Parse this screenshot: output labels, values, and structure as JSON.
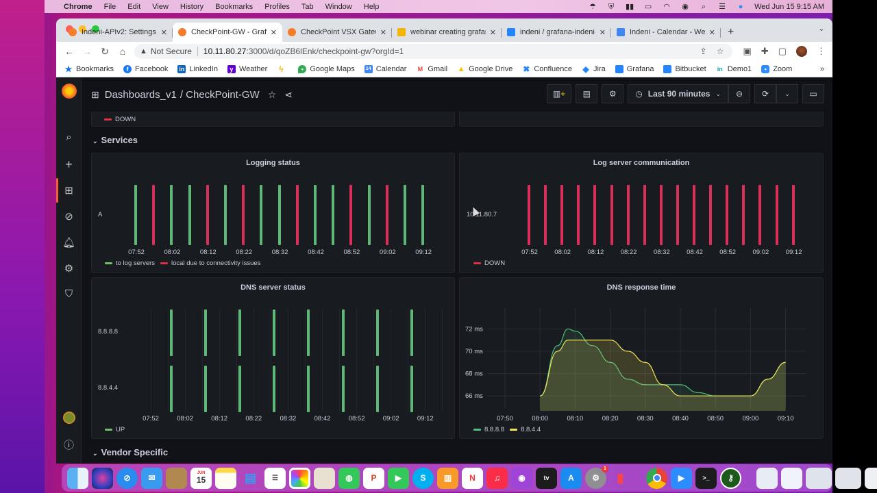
{
  "menubar": {
    "app": "Chrome",
    "items": [
      "File",
      "Edit",
      "View",
      "History",
      "Bookmarks",
      "Profiles",
      "Tab",
      "Window",
      "Help"
    ],
    "datetime": "Wed Jun 15  9:15 AM",
    "status_icons": [
      "rain-cloud-icon",
      "shield-icon",
      "waveform-icon",
      "battery-icon",
      "wifi-icon",
      "user-circle-icon",
      "search-icon",
      "control-center-icon",
      "siri-icon"
    ]
  },
  "browser": {
    "tabs": [
      {
        "title": "Indeni-APIv2: Settings -",
        "icon": "grafana-icon",
        "active": false
      },
      {
        "title": "CheckPoint-GW - Grafa",
        "icon": "grafana-icon",
        "active": true
      },
      {
        "title": "CheckPoint VSX Gatew",
        "icon": "grafana-icon",
        "active": false
      },
      {
        "title": "webinar creating grafan",
        "icon": "slides-icon",
        "active": false
      },
      {
        "title": "indeni / grafana-indeni-",
        "icon": "bitbucket-icon",
        "active": false
      },
      {
        "title": "Indeni - Calendar - Wee",
        "icon": "calendar-icon",
        "active": false
      }
    ],
    "security_label": "Not Secure",
    "url_host": "10.11.80.27",
    "url_path": ":3000/d/qoZB6lEnk/checkpoint-gw?orgId=1",
    "bookmarks": [
      {
        "label": "Bookmarks",
        "icon": "star-icon",
        "color": "#1a73e8"
      },
      {
        "label": "Facebook",
        "icon": "facebook-icon",
        "color": "#1877f2"
      },
      {
        "label": "LinkedIn",
        "icon": "linkedin-icon",
        "color": "#0a66c2"
      },
      {
        "label": "Weather",
        "icon": "yahoo-icon",
        "color": "#6001d2"
      },
      {
        "label": "",
        "icon": "bolt-icon",
        "color": "#f4b400"
      },
      {
        "label": "Google Maps",
        "icon": "maps-pin-icon",
        "color": "#34a853"
      },
      {
        "label": "Calendar",
        "icon": "calendar-icon",
        "color": "#4285f4"
      },
      {
        "label": "Gmail",
        "icon": "gmail-icon",
        "color": "#ea4335"
      },
      {
        "label": "Google Drive",
        "icon": "drive-icon",
        "color": "#fbbc04"
      },
      {
        "label": "Confluence",
        "icon": "confluence-icon",
        "color": "#2684ff"
      },
      {
        "label": "Jira",
        "icon": "jira-icon",
        "color": "#2684ff"
      },
      {
        "label": "Grafana",
        "icon": "bitbucket-icon",
        "color": "#2684ff"
      },
      {
        "label": "Bitbucket",
        "icon": "bitbucket-icon",
        "color": "#2684ff"
      },
      {
        "label": "Demo1",
        "icon": "invision-icon",
        "color": "#14a0a0"
      },
      {
        "label": "Zoom",
        "icon": "zoom-icon",
        "color": "#2d8cff"
      }
    ],
    "bookmarks_more": "»"
  },
  "grafana": {
    "breadcrumb_folder": "Dashboards_v1",
    "breadcrumb_dashboard": "/ CheckPoint-GW",
    "time_range": "Last 90 minutes",
    "top_partial_legend": "DOWN",
    "rows": {
      "services": "Services",
      "vendor": "Vendor Specific"
    },
    "colors": {
      "green": "#56a64b",
      "red": "#e02f44",
      "dns_green": "#4fbf7f",
      "dns_yellow": "#f2e35a",
      "accent": "#f55f3e"
    }
  },
  "chart_data": [
    {
      "type": "state-timeline",
      "title": "Logging status",
      "y_categories": [
        "A"
      ],
      "x_ticks": [
        "07:52",
        "08:02",
        "08:12",
        "08:22",
        "08:32",
        "08:42",
        "08:52",
        "09:02",
        "09:12"
      ],
      "states": [
        "green",
        "red",
        "green",
        "green",
        "red",
        "green",
        "red",
        "green",
        "green",
        "red",
        "green",
        "green",
        "red",
        "green",
        "red",
        "green",
        "green"
      ],
      "legend": [
        {
          "label": "to log servers",
          "color": "#73bf69"
        },
        {
          "label": "local due to connectivity issues",
          "color": "#e02f44"
        }
      ]
    },
    {
      "type": "state-timeline",
      "title": "Log server communication",
      "y_categories": [
        "10.11.80.7"
      ],
      "x_ticks": [
        "07:52",
        "08:02",
        "08:12",
        "08:22",
        "08:32",
        "08:42",
        "08:52",
        "09:02",
        "09:12"
      ],
      "states": [
        "red",
        "red",
        "red",
        "red",
        "red",
        "red",
        "red",
        "red",
        "red",
        "red",
        "red",
        "red",
        "red",
        "red",
        "red",
        "red",
        "red"
      ],
      "legend": [
        {
          "label": "DOWN",
          "color": "#e02f44"
        }
      ]
    },
    {
      "type": "state-timeline",
      "title": "DNS server status",
      "y_categories": [
        "8.8.8.8",
        "8.8.4.4"
      ],
      "x_ticks": [
        "07:52",
        "08:02",
        "08:12",
        "08:22",
        "08:32",
        "08:42",
        "08:52",
        "09:02",
        "09:12"
      ],
      "bar_count_per_row": 8,
      "states": [
        "green",
        "green",
        "green",
        "green",
        "green",
        "green",
        "green",
        "green"
      ],
      "legend": [
        {
          "label": "UP",
          "color": "#73bf69"
        }
      ]
    },
    {
      "type": "area",
      "title": "DNS response time",
      "x": [
        "08:00",
        "08:05",
        "08:08",
        "08:10",
        "08:15",
        "08:20",
        "08:25",
        "08:30",
        "08:35",
        "08:40",
        "08:45",
        "08:50",
        "08:55",
        "09:00",
        "09:05",
        "09:10"
      ],
      "series": [
        {
          "name": "8.8.8.8",
          "color": "#4fbf7f",
          "values": [
            66,
            70.5,
            72,
            71.8,
            70.5,
            69,
            67.5,
            67,
            67,
            67,
            66.3,
            66,
            66,
            66,
            67.5,
            69
          ]
        },
        {
          "name": "8.8.4.4",
          "color": "#f2e35a",
          "values": [
            66,
            70,
            71,
            71,
            71,
            71,
            70,
            69,
            67,
            66,
            66,
            66,
            66,
            66,
            67.5,
            69
          ]
        }
      ],
      "x_ticks": [
        "07:50",
        "08:00",
        "08:10",
        "08:20",
        "08:30",
        "08:40",
        "08:50",
        "09:00",
        "09:10"
      ],
      "y_ticks": [
        "66 ms",
        "68 ms",
        "70 ms",
        "72 ms"
      ],
      "ylim": [
        65.4,
        73
      ]
    }
  ],
  "dock": {
    "apps": [
      "finder",
      "siri",
      "safari",
      "mail",
      "contacts",
      "calendar",
      "notes",
      "keynote",
      "reminders",
      "photos",
      "preview",
      "messages",
      "powerpoint",
      "facetime",
      "skype",
      "books",
      "news",
      "music",
      "podcasts",
      "apple-tv",
      "app-store",
      "system-preferences",
      "numbers"
    ],
    "running": [
      "chrome",
      "zoom",
      "terminal",
      "keepass"
    ],
    "calendar_day": "15",
    "calendar_month": "JUN",
    "sysprefs_badge": "1"
  }
}
